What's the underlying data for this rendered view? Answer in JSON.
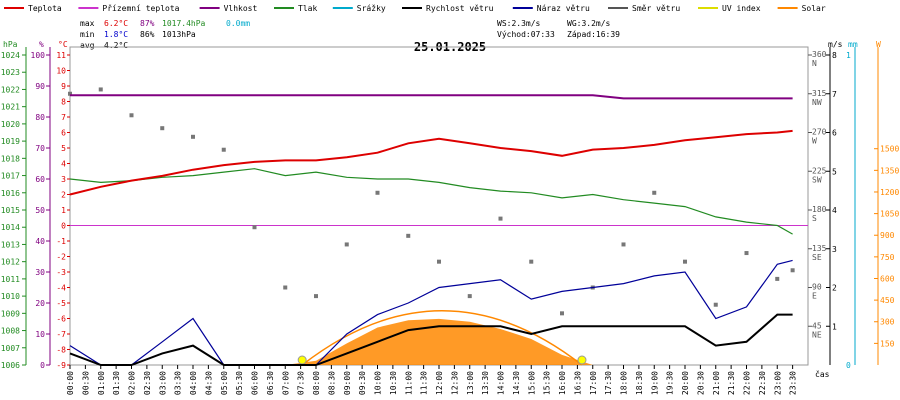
{
  "legend": [
    {
      "label": "Teplota",
      "color": "#dd0000"
    },
    {
      "label": "Přízemní teplota",
      "color": "#cc33cc"
    },
    {
      "label": "Vlhkost",
      "color": "#800080"
    },
    {
      "label": "Tlak",
      "color": "#228b22"
    },
    {
      "label": "Srážky",
      "color": "#00aacc"
    },
    {
      "label": "Rychlost větru",
      "color": "#000000"
    },
    {
      "label": "Náraz větru",
      "color": "#000099"
    },
    {
      "label": "Směr větru",
      "color": "#555555"
    },
    {
      "label": "UV index",
      "color": "#dddd00"
    },
    {
      "label": "Solar",
      "color": "#ff8800"
    }
  ],
  "stats": {
    "max_label": "max",
    "max_temp": "6.2°C",
    "max_hum": "87%",
    "max_press": "1017.4hPa",
    "max_rain": "0.0mm",
    "min_label": "min",
    "min_temp": "1.8°C",
    "min_hum": "86%",
    "min_press": "1013hPa",
    "avg_label": "avg",
    "avg_temp": "4.2°C"
  },
  "info": {
    "ws": "WS:2.3m/s",
    "wg": "WG:3.2m/s",
    "sunrise": "Východ:07:33",
    "sunset": "Západ:16:39"
  },
  "date": "25.01.2025",
  "axis_units": {
    "hpa": "hPa",
    "pct": "%",
    "degc": "°C",
    "ms": "m/s",
    "mm": "mm",
    "w": "W",
    "xlabel": "čas"
  },
  "axes": {
    "hpa_ticks": [
      "1024",
      "1023",
      "1022",
      "1021",
      "1020",
      "1019",
      "1018",
      "1017",
      "1016",
      "1015",
      "1014",
      "1013",
      "1012",
      "1011",
      "1010",
      "1009",
      "1008",
      "1007",
      "1006"
    ],
    "pct_ticks": [
      "100",
      "90",
      "80",
      "70",
      "60",
      "50",
      "40",
      "30",
      "20",
      "10",
      "0"
    ],
    "degc_ticks": [
      "11",
      "10",
      "9",
      "8",
      "7",
      "6",
      "5",
      "4",
      "3",
      "2",
      "1",
      "0",
      "-1",
      "-2",
      "-3",
      "-4",
      "-5",
      "-6",
      "-7",
      "-8",
      "-9"
    ],
    "dir_ticks": [
      {
        "deg": "360",
        "dir": "N"
      },
      {
        "deg": "315",
        "dir": "NW"
      },
      {
        "deg": "270",
        "dir": "W"
      },
      {
        "deg": "225",
        "dir": "SW"
      },
      {
        "deg": "180",
        "dir": "S"
      },
      {
        "deg": "135",
        "dir": "SE"
      },
      {
        "deg": "90",
        "dir": "E"
      },
      {
        "deg": "45",
        "dir": "NE"
      }
    ],
    "ms_ticks": [
      "8",
      "7",
      "6",
      "5",
      "4",
      "3",
      "2",
      "1"
    ],
    "mm_ticks": [
      "1",
      "0"
    ],
    "w_ticks": [
      "1500",
      "1350",
      "1200",
      "1050",
      "900",
      "750",
      "600",
      "450",
      "300",
      "150"
    ],
    "time_ticks": [
      "00:00",
      "00:30",
      "01:00",
      "01:30",
      "02:00",
      "02:30",
      "03:00",
      "03:30",
      "04:00",
      "04:30",
      "05:00",
      "05:30",
      "06:00",
      "06:30",
      "07:00",
      "07:30",
      "08:00",
      "08:30",
      "09:00",
      "09:30",
      "10:00",
      "10:30",
      "11:00",
      "11:30",
      "12:00",
      "12:30",
      "13:00",
      "13:30",
      "14:00",
      "14:30",
      "15:00",
      "15:30",
      "16:00",
      "16:30",
      "17:00",
      "17:30",
      "18:00",
      "18:30",
      "19:00",
      "19:30",
      "20:00",
      "20:30",
      "21:00",
      "21:30",
      "22:00",
      "22:30",
      "23:00",
      "23:30"
    ]
  },
  "chart_data": {
    "type": "line",
    "title": "25.01.2025",
    "xlabel": "čas",
    "x_hours": [
      0,
      1,
      2,
      3,
      4,
      5,
      6,
      7,
      8,
      9,
      10,
      11,
      12,
      13,
      14,
      15,
      16,
      17,
      18,
      19,
      20,
      21,
      22,
      23,
      23.5
    ],
    "series": [
      {
        "name": "Teplota",
        "unit": "°C",
        "values": [
          2.0,
          2.5,
          2.9,
          3.2,
          3.6,
          3.9,
          4.1,
          4.2,
          4.2,
          4.4,
          4.7,
          5.3,
          5.6,
          5.3,
          5.0,
          4.8,
          4.5,
          4.9,
          5.0,
          5.2,
          5.5,
          5.7,
          5.9,
          6.0,
          6.1
        ]
      },
      {
        "name": "Vlhkost",
        "unit": "%",
        "values": [
          87,
          87,
          87,
          87,
          87,
          87,
          87,
          87,
          87,
          87,
          87,
          87,
          87,
          87,
          87,
          87,
          87,
          87,
          86,
          86,
          86,
          86,
          86,
          86,
          86
        ]
      },
      {
        "name": "Tlak",
        "unit": "hPa",
        "values": [
          1016.8,
          1016.6,
          1016.7,
          1016.9,
          1017.0,
          1017.2,
          1017.4,
          1017.0,
          1017.2,
          1016.9,
          1016.8,
          1016.8,
          1016.6,
          1016.3,
          1016.1,
          1016.0,
          1015.7,
          1015.9,
          1015.6,
          1015.4,
          1015.2,
          1014.6,
          1014.3,
          1014.1,
          1013.6
        ]
      },
      {
        "name": "Přízemní teplota",
        "unit": "°C",
        "values": [
          0,
          0,
          0,
          0,
          0,
          0,
          0,
          0,
          0,
          0,
          0,
          0,
          0,
          0,
          0,
          0,
          0,
          0,
          0,
          0,
          0,
          0,
          0,
          0,
          0
        ]
      },
      {
        "name": "Rychlost větru",
        "unit": "m/s",
        "values": [
          0.3,
          0.0,
          0.0,
          0.3,
          0.5,
          0.0,
          0.0,
          0.0,
          0.0,
          0.3,
          0.6,
          0.9,
          1.0,
          1.0,
          1.0,
          0.8,
          1.0,
          1.0,
          1.0,
          1.0,
          1.0,
          0.5,
          0.6,
          1.3,
          1.3
        ]
      },
      {
        "name": "Náraz větru",
        "unit": "m/s",
        "values": [
          0.5,
          0.0,
          0.0,
          0.6,
          1.2,
          0.0,
          0.0,
          0.0,
          0.0,
          0.8,
          1.3,
          1.6,
          2.0,
          2.1,
          2.2,
          1.7,
          1.9,
          2.0,
          2.1,
          2.3,
          2.4,
          1.2,
          1.5,
          2.6,
          2.7
        ]
      },
      {
        "name": "Solar",
        "unit": "W",
        "values": [
          0,
          0,
          0,
          0,
          0,
          0,
          0,
          0,
          30,
          150,
          260,
          310,
          320,
          300,
          250,
          180,
          70,
          0,
          0,
          0,
          0,
          0,
          0,
          0,
          0
        ]
      }
    ],
    "wind_direction_deg": [
      315,
      320,
      290,
      275,
      265,
      250,
      160,
      90,
      80,
      140,
      200,
      150,
      120,
      80,
      170,
      120,
      60,
      90,
      140,
      200,
      120,
      70,
      130,
      100,
      110
    ],
    "sunrise": "07:33",
    "sunset": "16:39"
  }
}
